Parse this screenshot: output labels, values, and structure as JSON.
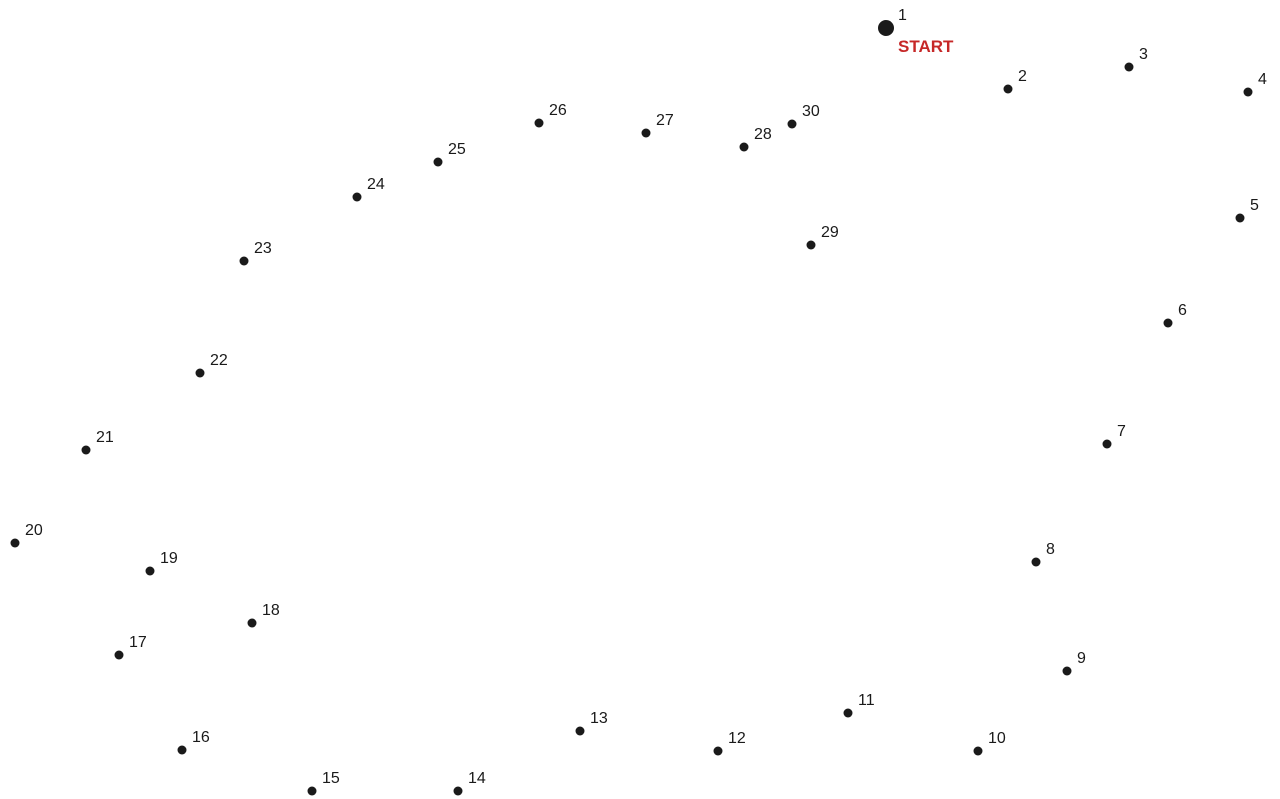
{
  "puzzle": {
    "start_label": "START",
    "dot_color": "#1a1a1a",
    "label_color": "#1a1a1a",
    "start_color": "#c62828",
    "dots": [
      {
        "n": "1"
      },
      {
        "n": "2"
      },
      {
        "n": "3"
      },
      {
        "n": "4"
      },
      {
        "n": "5"
      },
      {
        "n": "6"
      },
      {
        "n": "7"
      },
      {
        "n": "8"
      },
      {
        "n": "9"
      },
      {
        "n": "10"
      },
      {
        "n": "11"
      },
      {
        "n": "12"
      },
      {
        "n": "13"
      },
      {
        "n": "14"
      },
      {
        "n": "15"
      },
      {
        "n": "16"
      },
      {
        "n": "17"
      },
      {
        "n": "18"
      },
      {
        "n": "19"
      },
      {
        "n": "20"
      },
      {
        "n": "21"
      },
      {
        "n": "22"
      },
      {
        "n": "23"
      },
      {
        "n": "24"
      },
      {
        "n": "25"
      },
      {
        "n": "26"
      },
      {
        "n": "27"
      },
      {
        "n": "28"
      },
      {
        "n": "29"
      },
      {
        "n": "30"
      }
    ]
  }
}
